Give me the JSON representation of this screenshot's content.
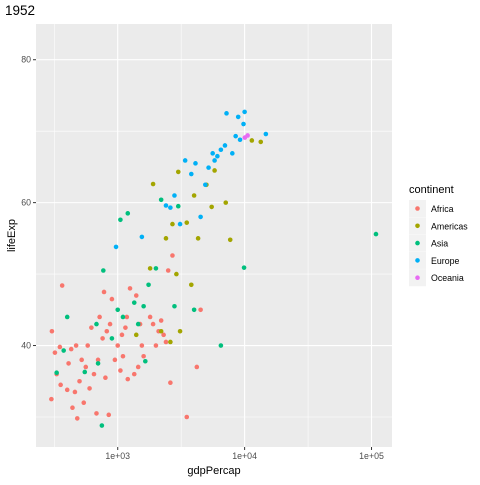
{
  "chart_data": {
    "type": "scatter",
    "title": "1952",
    "xlabel": "gdpPercap",
    "ylabel": "lifeExp",
    "x_scale": "log10",
    "xlim": [
      227,
      145000
    ],
    "ylim": [
      25.8,
      85.0
    ],
    "x_ticks": [
      1000,
      10000,
      100000
    ],
    "x_tick_labels": [
      "1e+03",
      "1e+04",
      "1e+05"
    ],
    "y_ticks": [
      40,
      60,
      80
    ],
    "y_tick_labels": [
      "40",
      "60",
      "80"
    ],
    "grid": true,
    "legend": {
      "title": "continent",
      "placement": "right"
    },
    "colors": {
      "panel": "#EBEBEB",
      "grid_major": "#FFFFFF",
      "tick_text": "#4D4D4D",
      "Africa": "#F8766D",
      "Americas": "#A3A500",
      "Asia": "#00BF7D",
      "Europe": "#00B0F6",
      "Oceania": "#E76BF3"
    },
    "series": [
      {
        "name": "Africa",
        "points": [
          [
            300,
            32.5
          ],
          [
            303,
            42.0
          ],
          [
            320,
            39.0
          ],
          [
            330,
            36.0
          ],
          [
            350,
            39.8
          ],
          [
            355,
            34.5
          ],
          [
            365,
            48.4
          ],
          [
            400,
            33.8
          ],
          [
            410,
            37.5
          ],
          [
            430,
            39.5
          ],
          [
            440,
            31.3
          ],
          [
            460,
            33.5
          ],
          [
            470,
            40.0
          ],
          [
            480,
            29.8
          ],
          [
            500,
            35.0
          ],
          [
            520,
            38.0
          ],
          [
            540,
            32.0
          ],
          [
            560,
            37.0
          ],
          [
            580,
            40.0
          ],
          [
            600,
            34.0
          ],
          [
            620,
            42.5
          ],
          [
            650,
            36.0
          ],
          [
            680,
            30.5
          ],
          [
            700,
            38.0
          ],
          [
            720,
            44.0
          ],
          [
            760,
            41.0
          ],
          [
            780,
            47.5
          ],
          [
            800,
            35.5
          ],
          [
            820,
            42.0
          ],
          [
            850,
            30.3
          ],
          [
            870,
            43.0
          ],
          [
            900,
            46.5
          ],
          [
            950,
            38.0
          ],
          [
            1000,
            40.0
          ],
          [
            1050,
            36.5
          ],
          [
            1080,
            41.5
          ],
          [
            1100,
            38.5
          ],
          [
            1150,
            42.5
          ],
          [
            1180,
            44.0
          ],
          [
            1200,
            35.3
          ],
          [
            1250,
            48.0
          ],
          [
            1350,
            36.0
          ],
          [
            1400,
            47.0
          ],
          [
            1450,
            37.0
          ],
          [
            1500,
            43.0
          ],
          [
            1550,
            40.0
          ],
          [
            1600,
            38.5
          ],
          [
            1800,
            44.0
          ],
          [
            1900,
            43.0
          ],
          [
            2000,
            40.0
          ],
          [
            2100,
            42.0
          ],
          [
            2200,
            43.5
          ],
          [
            2300,
            41.5
          ],
          [
            2400,
            40.5
          ],
          [
            2500,
            50.5
          ],
          [
            2600,
            34.8
          ],
          [
            2700,
            52.6
          ],
          [
            3500,
            30.0
          ],
          [
            4200,
            37.0
          ],
          [
            4500,
            45.0
          ]
        ]
      },
      {
        "name": "Americas",
        "points": [
          [
            1400,
            41.5
          ],
          [
            1800,
            50.8
          ],
          [
            1900,
            62.6
          ],
          [
            2200,
            42.0
          ],
          [
            2400,
            55.0
          ],
          [
            2600,
            40.5
          ],
          [
            2700,
            57.0
          ],
          [
            2900,
            50.0
          ],
          [
            3000,
            64.3
          ],
          [
            3100,
            42.0
          ],
          [
            3500,
            57.2
          ],
          [
            3800,
            48.5
          ],
          [
            4000,
            61.0
          ],
          [
            4300,
            55.0
          ],
          [
            5000,
            62.5
          ],
          [
            5500,
            59.4
          ],
          [
            5800,
            64.5
          ],
          [
            7100,
            60.0
          ],
          [
            7700,
            54.8
          ],
          [
            11400,
            68.7
          ],
          [
            13400,
            68.5
          ]
        ]
      },
      {
        "name": "Asia",
        "points": [
          [
            330,
            36.2
          ],
          [
            375,
            39.3
          ],
          [
            400,
            44.0
          ],
          [
            550,
            36.3
          ],
          [
            680,
            43.0
          ],
          [
            700,
            37.5
          ],
          [
            750,
            28.8
          ],
          [
            770,
            50.5
          ],
          [
            900,
            41.0
          ],
          [
            1000,
            45.0
          ],
          [
            1050,
            57.6
          ],
          [
            1100,
            44.0
          ],
          [
            1200,
            58.5
          ],
          [
            1350,
            46.0
          ],
          [
            1450,
            43.0
          ],
          [
            1600,
            45.5
          ],
          [
            1650,
            37.8
          ],
          [
            1750,
            48.5
          ],
          [
            2000,
            50.8
          ],
          [
            2200,
            60.4
          ],
          [
            2800,
            45.5
          ],
          [
            3000,
            59.5
          ],
          [
            4000,
            45.0
          ],
          [
            6500,
            40.0
          ],
          [
            9900,
            50.9
          ],
          [
            108400,
            55.6
          ]
        ]
      },
      {
        "name": "Europe",
        "points": [
          [
            970,
            53.8
          ],
          [
            1550,
            55.2
          ],
          [
            2400,
            59.6
          ],
          [
            2600,
            59.3
          ],
          [
            2800,
            61.0
          ],
          [
            3100,
            57.0
          ],
          [
            3400,
            65.9
          ],
          [
            3800,
            64.0
          ],
          [
            4100,
            65.5
          ],
          [
            4500,
            58.0
          ],
          [
            4900,
            62.5
          ],
          [
            5200,
            64.9
          ],
          [
            5600,
            66.9
          ],
          [
            5800,
            65.9
          ],
          [
            6100,
            66.5
          ],
          [
            6500,
            67.4
          ],
          [
            7000,
            68.0
          ],
          [
            7200,
            72.5
          ],
          [
            8000,
            66.9
          ],
          [
            8500,
            69.3
          ],
          [
            8900,
            72.0
          ],
          [
            9200,
            68.8
          ],
          [
            9800,
            71.0
          ],
          [
            10000,
            72.7
          ],
          [
            14700,
            69.6
          ]
        ]
      },
      {
        "name": "Oceania",
        "points": [
          [
            10040,
            69.1
          ],
          [
            10560,
            69.4
          ]
        ]
      }
    ]
  }
}
